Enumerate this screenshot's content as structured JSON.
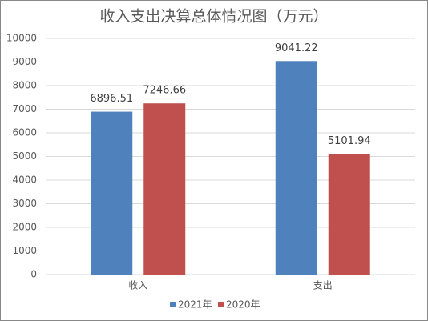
{
  "chart_data": {
    "type": "bar",
    "title": "收入支出决算总体情况图（万元）",
    "categories": [
      "收入",
      "支出"
    ],
    "series": [
      {
        "name": "2021年",
        "color": "#4f81bd",
        "values": [
          6896.51,
          9041.22
        ]
      },
      {
        "name": "2020年",
        "color": "#c0504d",
        "values": [
          7246.66,
          5101.94
        ]
      }
    ],
    "ylim": [
      0,
      10000
    ],
    "yticks": [
      0,
      1000,
      2000,
      3000,
      4000,
      5000,
      6000,
      7000,
      8000,
      9000,
      10000
    ],
    "grid": true,
    "legend": "bottom"
  }
}
